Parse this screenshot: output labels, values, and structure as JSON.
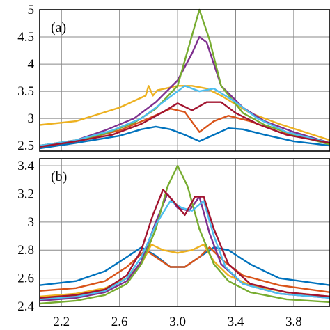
{
  "chart_data": [
    {
      "panel": "(a)",
      "type": "line",
      "title": "",
      "xlabel": "",
      "ylabel": "",
      "xlim": [
        2.05,
        4.05
      ],
      "ylim": [
        2.4,
        5.0
      ],
      "xticks": [
        2.2,
        2.6,
        3.0,
        3.4,
        3.8
      ],
      "yticks": [
        2.5,
        3,
        3.5,
        4,
        4.5,
        5
      ],
      "ytick_labels": [
        "2.5",
        "3",
        "3.5",
        "4",
        "4.5",
        "5"
      ],
      "grid": true,
      "series": [
        {
          "color": "#0072bd",
          "x": [
            2.05,
            2.3,
            2.6,
            2.75,
            2.85,
            2.95,
            3.05,
            3.15,
            3.25,
            3.35,
            3.45,
            3.6,
            3.8,
            4.05
          ],
          "y": [
            2.45,
            2.55,
            2.68,
            2.8,
            2.85,
            2.8,
            2.7,
            2.58,
            2.7,
            2.82,
            2.8,
            2.7,
            2.58,
            2.5
          ]
        },
        {
          "color": "#d95319",
          "x": [
            2.05,
            2.3,
            2.6,
            2.8,
            2.95,
            3.05,
            3.15,
            3.25,
            3.35,
            3.5,
            3.7,
            4.05
          ],
          "y": [
            2.48,
            2.58,
            2.78,
            3.0,
            3.18,
            3.12,
            2.75,
            2.95,
            3.05,
            2.95,
            2.75,
            2.55
          ]
        },
        {
          "color": "#edb120",
          "x": [
            2.05,
            2.3,
            2.6,
            2.78,
            2.8,
            2.83,
            2.86,
            3.0,
            3.1,
            3.2,
            3.3,
            3.5,
            3.7,
            4.05
          ],
          "y": [
            2.88,
            2.95,
            3.2,
            3.42,
            3.6,
            3.42,
            3.52,
            3.6,
            3.6,
            3.55,
            3.42,
            3.1,
            2.9,
            2.6
          ]
        },
        {
          "color": "#7e2f8e",
          "x": [
            2.05,
            2.3,
            2.5,
            2.7,
            2.85,
            3.0,
            3.1,
            3.15,
            3.2,
            3.3,
            3.45,
            3.6,
            3.8,
            4.05
          ],
          "y": [
            2.5,
            2.6,
            2.78,
            3.0,
            3.3,
            3.7,
            4.2,
            4.5,
            4.4,
            3.6,
            3.2,
            2.95,
            2.75,
            2.55
          ]
        },
        {
          "color": "#77ac30",
          "x": [
            2.05,
            2.3,
            2.5,
            2.7,
            2.85,
            3.0,
            3.08,
            3.15,
            3.22,
            3.3,
            3.45,
            3.6,
            3.8,
            4.05
          ],
          "y": [
            2.5,
            2.6,
            2.72,
            2.92,
            3.18,
            3.6,
            4.35,
            5.0,
            4.45,
            3.6,
            3.1,
            2.88,
            2.7,
            2.52
          ]
        },
        {
          "color": "#4dbeee",
          "x": [
            2.05,
            2.3,
            2.55,
            2.75,
            2.9,
            3.05,
            3.15,
            3.25,
            3.4,
            3.55,
            3.75,
            4.05
          ],
          "y": [
            2.5,
            2.6,
            2.78,
            3.0,
            3.3,
            3.6,
            3.5,
            3.55,
            3.3,
            3.0,
            2.75,
            2.55
          ]
        },
        {
          "color": "#a2142f",
          "x": [
            2.05,
            2.3,
            2.55,
            2.75,
            2.9,
            3.0,
            3.1,
            3.2,
            3.3,
            3.4,
            3.55,
            3.75,
            4.05
          ],
          "y": [
            2.48,
            2.58,
            2.7,
            2.9,
            3.12,
            3.28,
            3.15,
            3.3,
            3.3,
            3.1,
            2.9,
            2.7,
            2.55
          ]
        }
      ]
    },
    {
      "panel": "(b)",
      "type": "line",
      "title": "",
      "xlabel": "",
      "ylabel": "",
      "xlim": [
        2.05,
        4.05
      ],
      "ylim": [
        2.4,
        3.45
      ],
      "xticks": [
        2.2,
        2.6,
        3.0,
        3.4,
        3.8
      ],
      "xtick_labels": [
        "2.2",
        "2.6",
        "3.0",
        "3.4",
        "3.8"
      ],
      "yticks": [
        2.4,
        2.6,
        2.8,
        3.0,
        3.2,
        3.4
      ],
      "ytick_labels": [
        "2.4",
        "2.6",
        "2.8",
        "3",
        "3.2",
        "3.4"
      ],
      "grid": true,
      "series": [
        {
          "color": "#0072bd",
          "x": [
            2.05,
            2.3,
            2.5,
            2.65,
            2.75,
            2.85,
            2.95,
            3.05,
            3.15,
            3.25,
            3.35,
            3.5,
            3.7,
            4.05
          ],
          "y": [
            2.55,
            2.58,
            2.65,
            2.75,
            2.82,
            2.76,
            2.68,
            2.68,
            2.75,
            2.82,
            2.8,
            2.7,
            2.6,
            2.55
          ]
        },
        {
          "color": "#d95319",
          "x": [
            2.05,
            2.3,
            2.5,
            2.65,
            2.78,
            2.85,
            2.95,
            3.05,
            3.15,
            3.22,
            3.32,
            3.45,
            3.7,
            4.05
          ],
          "y": [
            2.51,
            2.53,
            2.58,
            2.68,
            2.8,
            2.75,
            2.68,
            2.68,
            2.75,
            2.82,
            2.72,
            2.62,
            2.55,
            2.5
          ]
        },
        {
          "color": "#edb120",
          "x": [
            2.05,
            2.3,
            2.5,
            2.65,
            2.76,
            2.82,
            2.9,
            3.0,
            3.1,
            3.18,
            3.25,
            3.35,
            3.5,
            3.75,
            4.05
          ],
          "y": [
            2.47,
            2.49,
            2.53,
            2.6,
            2.72,
            2.84,
            2.8,
            2.78,
            2.8,
            2.84,
            2.72,
            2.62,
            2.55,
            2.5,
            2.47
          ]
        },
        {
          "color": "#7e2f8e",
          "x": [
            2.05,
            2.3,
            2.5,
            2.65,
            2.75,
            2.85,
            2.93,
            3.0,
            3.08,
            3.15,
            3.22,
            3.3,
            3.45,
            3.7,
            4.05
          ],
          "y": [
            2.44,
            2.46,
            2.5,
            2.58,
            2.72,
            3.0,
            3.2,
            3.1,
            3.08,
            3.18,
            2.92,
            2.7,
            2.56,
            2.49,
            2.46
          ]
        },
        {
          "color": "#77ac30",
          "x": [
            2.05,
            2.3,
            2.5,
            2.65,
            2.75,
            2.85,
            2.93,
            3.0,
            3.07,
            3.15,
            3.25,
            3.35,
            3.5,
            3.75,
            4.05
          ],
          "y": [
            2.42,
            2.44,
            2.48,
            2.56,
            2.7,
            2.95,
            3.25,
            3.4,
            3.25,
            2.95,
            2.7,
            2.58,
            2.5,
            2.45,
            2.43
          ]
        },
        {
          "color": "#4dbeee",
          "x": [
            2.05,
            2.3,
            2.5,
            2.65,
            2.75,
            2.85,
            2.95,
            3.03,
            3.1,
            3.18,
            3.25,
            3.33,
            3.45,
            3.7,
            4.05
          ],
          "y": [
            2.45,
            2.47,
            2.51,
            2.6,
            2.75,
            2.98,
            3.15,
            3.1,
            3.08,
            3.15,
            2.9,
            2.68,
            2.56,
            2.49,
            2.46
          ]
        },
        {
          "color": "#a2142f",
          "x": [
            2.05,
            2.3,
            2.5,
            2.65,
            2.75,
            2.83,
            2.9,
            2.97,
            3.05,
            3.12,
            3.18,
            3.25,
            3.35,
            3.5,
            3.75,
            4.05
          ],
          "y": [
            2.46,
            2.48,
            2.52,
            2.62,
            2.8,
            3.05,
            3.23,
            3.15,
            3.05,
            3.18,
            3.18,
            2.95,
            2.7,
            2.56,
            2.5,
            2.47
          ]
        }
      ]
    }
  ]
}
